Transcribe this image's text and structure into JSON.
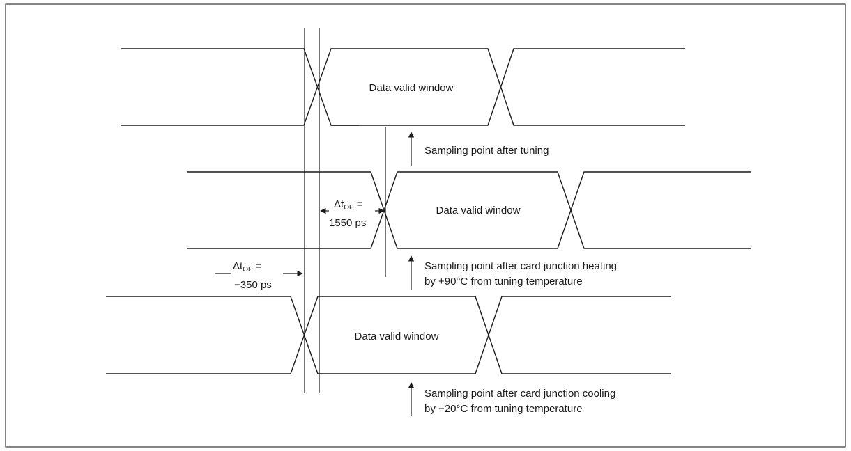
{
  "waveforms": [
    {
      "id": "tuned",
      "window_label": "Data valid window"
    },
    {
      "id": "hot",
      "window_label": "Data valid window"
    },
    {
      "id": "cold",
      "window_label": "Data valid window"
    }
  ],
  "sampling_points": [
    {
      "lines": [
        "Sampling point after tuning"
      ]
    },
    {
      "lines": [
        "Sampling point after card junction heating",
        "by +90°C from tuning temperature"
      ]
    },
    {
      "lines": [
        "Sampling point after card junction cooling",
        "by −20°C from tuning temperature"
      ]
    }
  ],
  "deltas": [
    {
      "symbol": "Δt",
      "subscript": "OP",
      "suffix": " =",
      "value": "1550 ps"
    },
    {
      "symbol": "Δt",
      "subscript": "OP",
      "suffix": " =",
      "value": "−350 ps"
    }
  ],
  "colors": {
    "stroke": "#1a1a1a",
    "border": "#333333",
    "background": "#ffffff"
  }
}
